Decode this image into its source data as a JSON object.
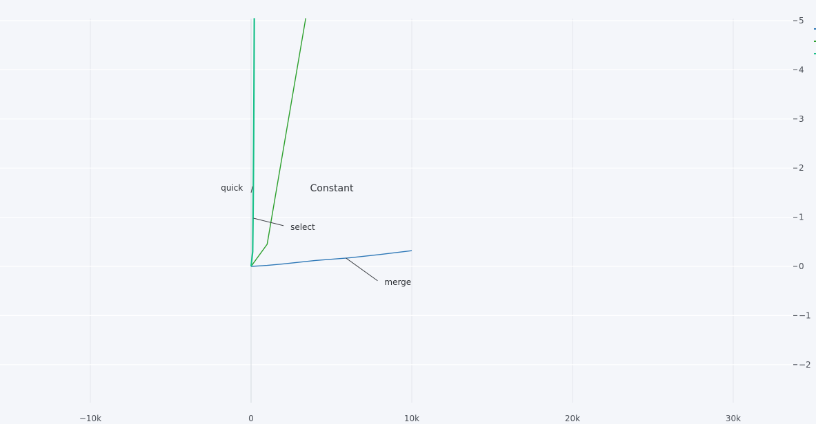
{
  "chart_data": {
    "type": "line",
    "title": "Constant",
    "xlabel": "",
    "ylabel": "",
    "xlim": [
      -15000,
      35000
    ],
    "ylim": [
      -2.8,
      5.05
    ],
    "x_ticks": [
      -10000,
      0,
      10000,
      20000,
      30000
    ],
    "x_tick_labels": [
      "−10k",
      "0",
      "10k",
      "20k",
      "30k"
    ],
    "y_ticks": [
      -2,
      -1,
      0,
      1,
      2,
      3,
      4,
      5
    ],
    "y_tick_labels": [
      "−2",
      "−1",
      "0",
      "1",
      "2",
      "3",
      "4",
      "5"
    ],
    "y_axis_side": "right",
    "grid": true,
    "legend": "top-right",
    "series": [
      {
        "color": "#2e78b7",
        "x": [
          0,
          1000,
          2000,
          4000,
          6000,
          8000,
          10000
        ],
        "y": [
          0,
          0.02,
          0.05,
          0.12,
          0.17,
          0.24,
          0.32
        ]
      },
      {
        "color": "#2ca02c",
        "x": [
          0,
          1000,
          3400
        ],
        "y": [
          0,
          0.45,
          5.05
        ]
      },
      {
        "color": "#1ac08a",
        "x": [
          0,
          100,
          120,
          140,
          160,
          180,
          200
        ],
        "y": [
          0,
          0.3,
          0.9,
          1.6,
          2.5,
          3.6,
          5.05
        ]
      }
    ],
    "annotations": [
      {
        "text": "quick",
        "ax": 0,
        "ay": 1.5,
        "tx": -500,
        "ty": 1.6
      },
      {
        "text": "select",
        "ax": 150,
        "ay": 0.98,
        "tx": 2450,
        "ty": 0.8
      },
      {
        "text": "merge",
        "ax": 5900,
        "ay": 0.17,
        "tx": 8300,
        "ty": -0.32
      }
    ]
  }
}
